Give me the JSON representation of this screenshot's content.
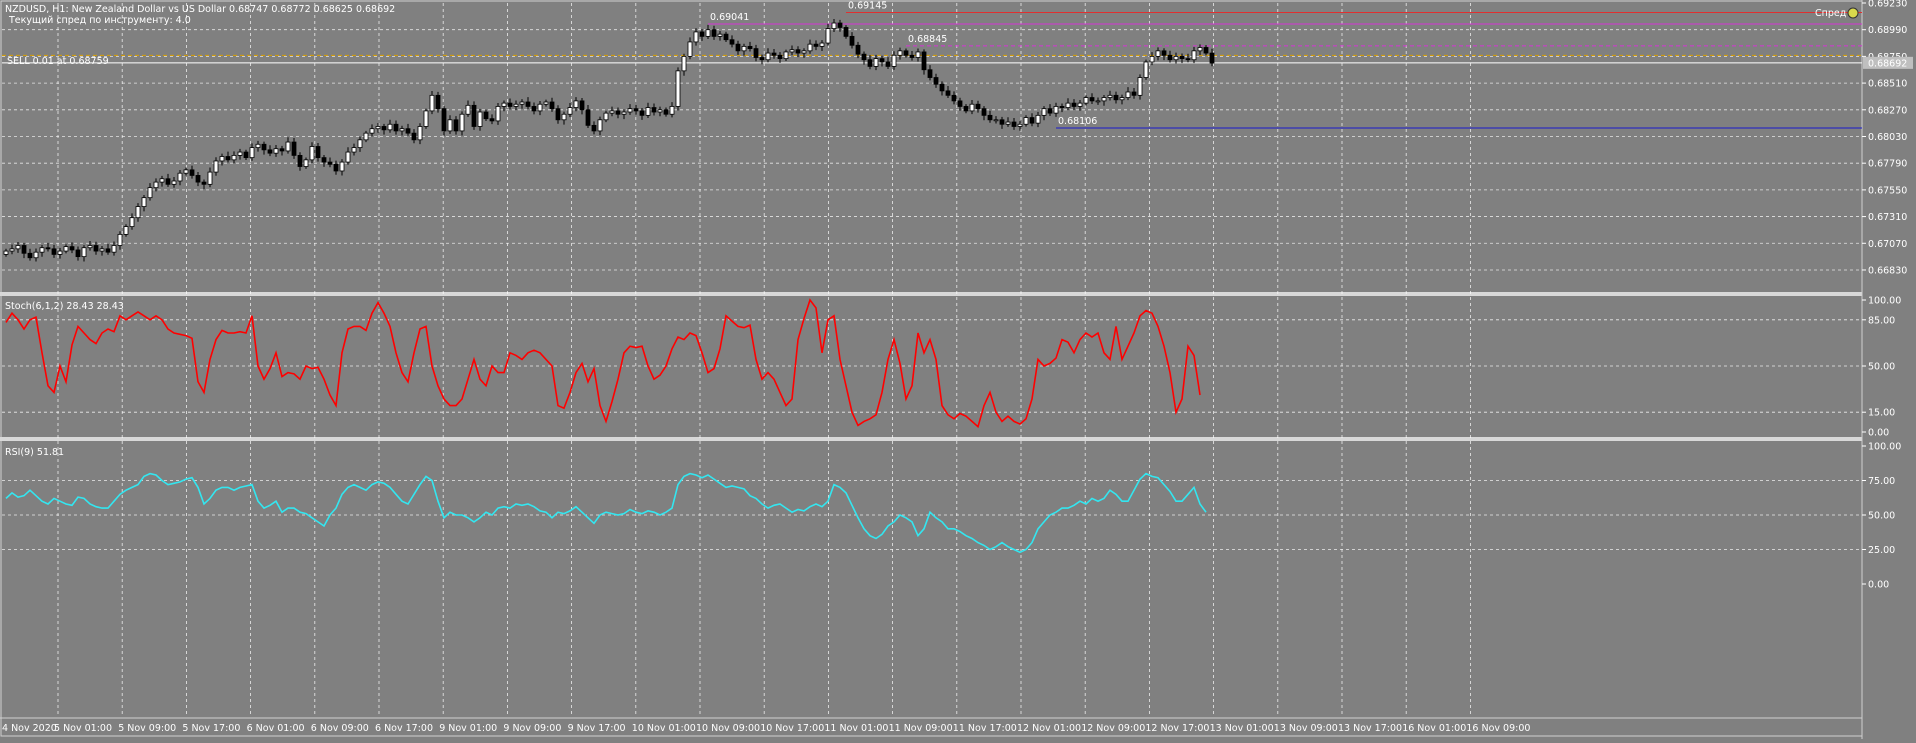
{
  "header": {
    "symbol_line": "NZDUSD, H1:  New Zealand Dollar vs US Dollar  0.68747 0.68772 0.68625 0.68692",
    "spread_line": "Текущий спред по инструменту: 4.0",
    "order_label": "SELL 0.01 at 0.68759",
    "corner_label": "Спред"
  },
  "colors": {
    "background": "#808080",
    "grid": "#ffffff",
    "text": "#ffffff",
    "bull_candle": "#ffffff",
    "bear_candle": "#000000",
    "stoch_line": "#ff0000",
    "rsi_line": "#33e6f0",
    "magenta_line": "#d633d6",
    "red_line": "#e03030",
    "blue_line": "#1a1acc",
    "order_line": "#d9a000",
    "price_line": "#ffffff"
  },
  "chart_data": [
    {
      "type": "candlestick",
      "title": "NZDUSD, H1",
      "ylim": [
        0.6665,
        0.6923
      ],
      "y_ticks": [
        "0.69230",
        "0.68990",
        "0.68750",
        "0.68510",
        "0.68270",
        "0.68030",
        "0.67790",
        "0.67550",
        "0.67310",
        "0.67070",
        "0.66830"
      ],
      "y_tick_values": [
        0.6923,
        0.6899,
        0.6875,
        0.6851,
        0.6827,
        0.6803,
        0.6779,
        0.6755,
        0.6731,
        0.6707,
        0.6683
      ],
      "current_price_label": "0.68692",
      "current_price": 0.68692,
      "order_price_label": "0.68759",
      "order_price": 0.68759,
      "annotations": [
        {
          "text": "0.69041",
          "price": 0.69041,
          "bar": 117
        },
        {
          "text": "0.69145",
          "price": 0.69145,
          "bar": 140
        },
        {
          "text": "0.68845",
          "price": 0.68845,
          "bar": 150
        },
        {
          "text": "0.68106",
          "price": 0.68106,
          "bar": 175
        }
      ],
      "levels": [
        {
          "price": 0.69145,
          "from_bar": 140,
          "color": "red"
        },
        {
          "price": 0.69041,
          "from_bar": 117,
          "color": "magenta"
        },
        {
          "price": 0.68845,
          "from_bar": 150,
          "color": "magenta_dashed"
        },
        {
          "price": 0.68106,
          "from_bar": 175,
          "color": "blue"
        }
      ],
      "x_labels": [
        "4 Nov 2020",
        "5 Nov 01:00",
        "5 Nov 09:00",
        "5 Nov 17:00",
        "6 Nov 01:00",
        "6 Nov 09:00",
        "6 Nov 17:00",
        "9 Nov 01:00",
        "9 Nov 09:00",
        "9 Nov 17:00",
        "10 Nov 01:00",
        "10 Nov 09:00",
        "10 Nov 17:00",
        "11 Nov 01:00",
        "11 Nov 09:00",
        "11 Nov 17:00",
        "12 Nov 01:00",
        "12 Nov 09:00",
        "12 Nov 17:00",
        "13 Nov 01:00",
        "13 Nov 09:00",
        "13 Nov 17:00",
        "16 Nov 01:00",
        "16 Nov 09:00"
      ],
      "close": [
        0.67,
        0.6702,
        0.6705,
        0.6698,
        0.6694,
        0.6699,
        0.6703,
        0.6702,
        0.6697,
        0.67,
        0.6704,
        0.6701,
        0.6695,
        0.6703,
        0.6705,
        0.67,
        0.6702,
        0.6699,
        0.6705,
        0.6715,
        0.6722,
        0.673,
        0.674,
        0.6748,
        0.6757,
        0.6762,
        0.6765,
        0.676,
        0.6763,
        0.677,
        0.6773,
        0.6768,
        0.6762,
        0.676,
        0.6771,
        0.6781,
        0.6785,
        0.6782,
        0.6786,
        0.6789,
        0.6784,
        0.6793,
        0.6796,
        0.6791,
        0.6788,
        0.6792,
        0.679,
        0.6798,
        0.6786,
        0.6776,
        0.6782,
        0.6794,
        0.6784,
        0.678,
        0.6778,
        0.6772,
        0.678,
        0.6789,
        0.6793,
        0.68,
        0.6806,
        0.681,
        0.6812,
        0.6809,
        0.6814,
        0.6808,
        0.681,
        0.6806,
        0.68,
        0.6812,
        0.6826,
        0.684,
        0.6828,
        0.6808,
        0.6818,
        0.6808,
        0.6823,
        0.6831,
        0.6812,
        0.6825,
        0.6819,
        0.6817,
        0.683,
        0.6833,
        0.683,
        0.6832,
        0.6834,
        0.683,
        0.6826,
        0.6832,
        0.6834,
        0.6828,
        0.6818,
        0.6823,
        0.6829,
        0.6835,
        0.6827,
        0.6813,
        0.6808,
        0.6818,
        0.6824,
        0.6826,
        0.6823,
        0.6825,
        0.6828,
        0.6826,
        0.6822,
        0.6829,
        0.6825,
        0.6827,
        0.6823,
        0.683,
        0.6862,
        0.6875,
        0.6888,
        0.6897,
        0.6893,
        0.6899,
        0.6893,
        0.6895,
        0.689,
        0.6886,
        0.688,
        0.6884,
        0.6882,
        0.6874,
        0.6872,
        0.6878,
        0.6876,
        0.6873,
        0.6879,
        0.6881,
        0.6878,
        0.688,
        0.6886,
        0.6884,
        0.6887,
        0.69,
        0.6905,
        0.6901,
        0.6893,
        0.6885,
        0.6877,
        0.6872,
        0.6866,
        0.6873,
        0.687,
        0.6866,
        0.6876,
        0.688,
        0.6876,
        0.6874,
        0.6879,
        0.6863,
        0.6856,
        0.685,
        0.6844,
        0.684,
        0.6835,
        0.683,
        0.6826,
        0.6832,
        0.6828,
        0.6822,
        0.6818,
        0.6818,
        0.6814,
        0.6816,
        0.6812,
        0.6814,
        0.682,
        0.6815,
        0.6822,
        0.6828,
        0.6824,
        0.683,
        0.6829,
        0.6833,
        0.683,
        0.6833,
        0.6838,
        0.6835,
        0.6835,
        0.6838,
        0.684,
        0.6836,
        0.6838,
        0.6843,
        0.684,
        0.6856,
        0.687,
        0.6875,
        0.688,
        0.6876,
        0.6872,
        0.6875,
        0.6873,
        0.6872,
        0.688,
        0.6883,
        0.6878,
        0.6869
      ],
      "high_offset": 0.00035,
      "low_offset": 0.00035
    },
    {
      "type": "line",
      "title": "Stoch(6,1,2) 28.43 28.43",
      "ylim": [
        0,
        100
      ],
      "y_ticks": [
        "100.00",
        "85.00",
        "50.00",
        "15.00",
        "0.00"
      ],
      "y_tick_values": [
        100,
        85,
        50,
        15,
        0
      ],
      "series": [
        {
          "name": "Stoch(6,1,2)",
          "color": "stoch_line",
          "values": [
            83,
            90,
            85,
            78,
            85,
            87,
            60,
            35,
            30,
            50,
            38,
            66,
            80,
            75,
            70,
            67,
            75,
            78,
            76,
            88,
            85,
            88,
            91,
            88,
            85,
            88,
            85,
            78,
            75,
            74,
            73,
            71,
            38,
            30,
            55,
            70,
            77,
            75,
            75,
            76,
            75,
            88,
            50,
            40,
            48,
            60,
            42,
            45,
            44,
            40,
            50,
            48,
            49,
            40,
            28,
            20,
            60,
            78,
            80,
            80,
            77,
            90,
            98,
            90,
            80,
            60,
            45,
            38,
            60,
            78,
            80,
            50,
            35,
            25,
            20,
            20,
            25,
            40,
            55,
            40,
            35,
            50,
            45,
            45,
            60,
            58,
            55,
            60,
            62,
            60,
            55,
            50,
            20,
            18,
            30,
            45,
            52,
            38,
            48,
            20,
            8,
            23,
            40,
            60,
            65,
            64,
            65,
            50,
            40,
            43,
            50,
            63,
            72,
            70,
            75,
            73,
            60,
            45,
            48,
            63,
            88,
            84,
            80,
            79,
            81,
            55,
            40,
            45,
            40,
            30,
            20,
            25,
            70,
            86,
            100,
            94,
            60,
            85,
            88,
            55,
            35,
            15,
            5,
            8,
            10,
            13,
            30,
            55,
            70,
            52,
            25,
            35,
            75,
            60,
            70,
            55,
            20,
            13,
            10,
            14,
            12,
            8,
            4,
            20,
            30,
            15,
            8,
            12,
            8,
            6,
            10,
            25,
            55,
            50,
            52,
            56,
            70,
            68,
            60,
            70,
            75,
            72,
            75,
            60,
            55,
            80,
            55,
            65,
            75,
            88,
            92,
            90,
            80,
            65,
            45,
            15,
            25,
            65,
            58,
            28
          ]
        }
      ]
    },
    {
      "type": "line",
      "title": "RSI(9) 51.81",
      "ylim": [
        0,
        100
      ],
      "y_ticks": [
        "100.00",
        "75.00",
        "50.00",
        "25.00",
        "0.00"
      ],
      "y_tick_values": [
        100,
        75,
        50,
        25,
        0
      ],
      "series": [
        {
          "name": "RSI(9)",
          "color": "rsi_line",
          "values": [
            62,
            66,
            63,
            64,
            68,
            64,
            60,
            58,
            62,
            60,
            58,
            57,
            63,
            62,
            58,
            56,
            55,
            55,
            60,
            65,
            68,
            70,
            72,
            78,
            80,
            79,
            75,
            72,
            73,
            74,
            76,
            77,
            70,
            58,
            62,
            68,
            70,
            70,
            68,
            70,
            71,
            72,
            60,
            55,
            57,
            60,
            52,
            55,
            55,
            52,
            51,
            48,
            45,
            42,
            50,
            55,
            65,
            70,
            72,
            70,
            68,
            72,
            74,
            73,
            70,
            65,
            60,
            58,
            65,
            72,
            78,
            75,
            60,
            48,
            52,
            50,
            50,
            48,
            45,
            48,
            52,
            50,
            55,
            56,
            55,
            58,
            57,
            58,
            56,
            53,
            52,
            48,
            52,
            51,
            53,
            56,
            52,
            48,
            44,
            50,
            52,
            51,
            50,
            51,
            54,
            52,
            51,
            53,
            52,
            50,
            52,
            55,
            72,
            78,
            80,
            79,
            77,
            79,
            76,
            73,
            70,
            71,
            70,
            69,
            64,
            62,
            58,
            55,
            57,
            58,
            55,
            52,
            54,
            53,
            56,
            58,
            56,
            60,
            72,
            70,
            66,
            57,
            48,
            40,
            35,
            33,
            36,
            42,
            45,
            50,
            48,
            45,
            35,
            40,
            52,
            48,
            45,
            40,
            40,
            38,
            35,
            33,
            30,
            28,
            25,
            27,
            30,
            27,
            25,
            23,
            25,
            30,
            40,
            45,
            50,
            52,
            55,
            55,
            57,
            60,
            58,
            62,
            60,
            62,
            68,
            65,
            60,
            60,
            68,
            76,
            80,
            78,
            77,
            72,
            67,
            60,
            60,
            65,
            70,
            58,
            52
          ]
        }
      ]
    }
  ]
}
